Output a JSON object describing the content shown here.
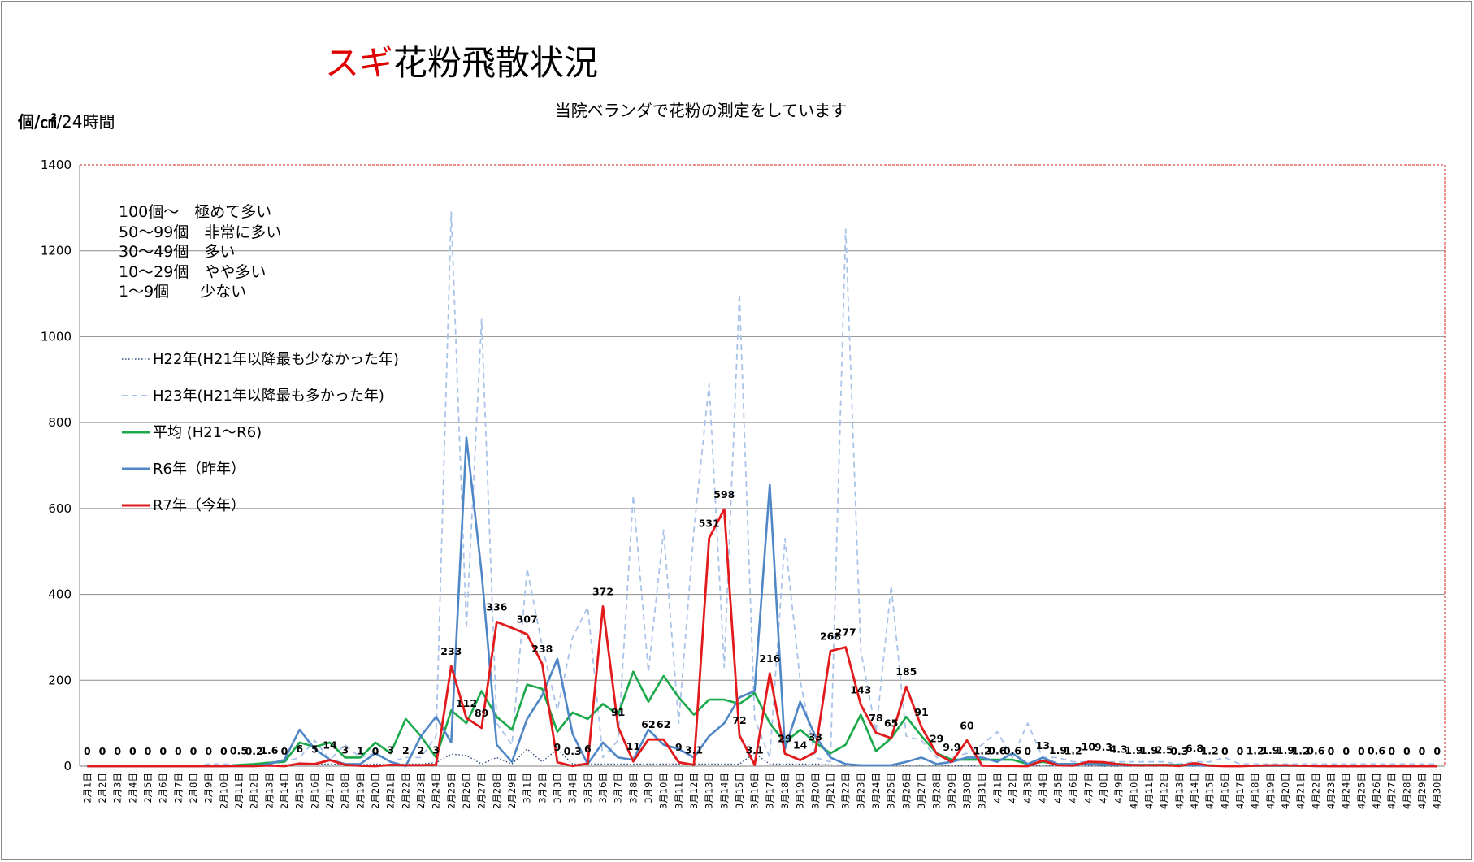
{
  "header": {
    "title_accent": "スギ",
    "title_rest": "花粉飛散状況",
    "subtitle": "当院ベランダで花粉の測定をしています",
    "unit_main": "個/㎠",
    "unit_tail": "/24時間"
  },
  "density_scale": [
    "100個～　極めて多い",
    "50～99個　非常に多い",
    "30～49個　多い",
    "10～29個　やや多い",
    "1～9個　　少ない"
  ],
  "colors": {
    "accent": "#e00000",
    "r7": "#e31a1c",
    "r6": "#4f86c6",
    "avg": "#1aa84b",
    "h23": "#a9c3e8",
    "h22": "#2b4a7a",
    "grid": "#8c8c8c",
    "plot_border": "#e31a1c"
  },
  "chart_data": {
    "type": "line",
    "ylim": [
      0,
      1400
    ],
    "yticks": [
      0,
      200,
      400,
      600,
      800,
      1000,
      1200,
      1400
    ],
    "grid": true,
    "legend_position": "left",
    "categories": [
      "2月1日",
      "2月2日",
      "2月3日",
      "2月4日",
      "2月5日",
      "2月6日",
      "2月7日",
      "2月8日",
      "2月9日",
      "2月10日",
      "2月11日",
      "2月12日",
      "2月13日",
      "2月14日",
      "2月15日",
      "2月16日",
      "2月17日",
      "2月18日",
      "2月19日",
      "2月20日",
      "2月21日",
      "2月22日",
      "2月23日",
      "2月24日",
      "2月25日",
      "2月26日",
      "2月27日",
      "2月28日",
      "2月29日",
      "3月1日",
      "3月2日",
      "3月3日",
      "3月4日",
      "3月5日",
      "3月6日",
      "3月7日",
      "3月8日",
      "3月9日",
      "3月10日",
      "3月11日",
      "3月12日",
      "3月13日",
      "3月14日",
      "3月15日",
      "3月16日",
      "3月17日",
      "3月18日",
      "3月19日",
      "3月20日",
      "3月21日",
      "3月22日",
      "3月23日",
      "3月24日",
      "3月25日",
      "3月26日",
      "3月27日",
      "3月28日",
      "3月29日",
      "3月30日",
      "3月31日",
      "4月1日",
      "4月2日",
      "4月3日",
      "4月4日",
      "4月5日",
      "4月6日",
      "4月7日",
      "4月8日",
      "4月9日",
      "4月10日",
      "4月11日",
      "4月12日",
      "4月13日",
      "4月14日",
      "4月15日",
      "4月16日",
      "4月17日",
      "4月18日",
      "4月19日",
      "4月20日",
      "4月21日",
      "4月22日",
      "4月23日",
      "4月24日",
      "4月25日",
      "4月26日",
      "4月27日",
      "4月28日",
      "4月29日",
      "4月30日"
    ],
    "series": [
      {
        "name": "H22年(H21年以降最も少なかった年)",
        "key": "h22",
        "style": "dotted",
        "values": [
          0,
          0,
          0,
          0,
          0,
          0,
          0,
          0,
          1,
          1,
          1,
          1,
          2,
          3,
          4,
          5,
          5,
          4,
          3,
          5,
          3,
          5,
          5,
          8,
          28,
          25,
          5,
          20,
          5,
          40,
          10,
          40,
          5,
          5,
          5,
          5,
          5,
          5,
          5,
          5,
          5,
          5,
          5,
          5,
          30,
          5,
          5,
          5,
          5,
          3,
          2,
          2,
          2,
          2,
          2,
          2,
          2,
          1,
          1,
          1,
          1,
          1,
          1,
          1,
          1,
          1,
          1,
          0,
          0,
          0,
          0,
          0,
          0,
          0,
          0,
          0,
          0,
          0,
          0,
          0,
          0,
          0,
          0,
          0,
          0,
          0,
          0,
          0,
          0,
          0
        ]
      },
      {
        "name": "H23年(H21年以降最も多かった年)",
        "key": "h23",
        "style": "dashed",
        "values": [
          0,
          0,
          0,
          0,
          0,
          0,
          0,
          0,
          5,
          5,
          3,
          3,
          10,
          10,
          20,
          60,
          15,
          50,
          20,
          30,
          10,
          20,
          20,
          70,
          1290,
          320,
          1040,
          100,
          50,
          460,
          280,
          130,
          300,
          370,
          20,
          60,
          630,
          220,
          550,
          100,
          550,
          890,
          230,
          1100,
          110,
          20,
          530,
          200,
          20,
          10,
          1250,
          270,
          80,
          420,
          70,
          60,
          20,
          20,
          30,
          50,
          80,
          20,
          100,
          20,
          20,
          10,
          10,
          10,
          10,
          10,
          10,
          10,
          5,
          10,
          10,
          20,
          5,
          5,
          5,
          5,
          5,
          5,
          5,
          5,
          5,
          5,
          5,
          5,
          5,
          5
        ]
      },
      {
        "name": "平均 (H21～R6)",
        "key": "avg",
        "style": "solid",
        "values": [
          0,
          0,
          0,
          0,
          0,
          0,
          0,
          0,
          0,
          0,
          3,
          5,
          8,
          10,
          55,
          45,
          55,
          20,
          20,
          55,
          30,
          110,
          70,
          20,
          130,
          100,
          175,
          115,
          85,
          190,
          180,
          80,
          125,
          110,
          145,
          120,
          220,
          150,
          210,
          160,
          120,
          155,
          155,
          145,
          170,
          100,
          55,
          85,
          55,
          30,
          50,
          120,
          35,
          65,
          115,
          70,
          30,
          15,
          15,
          15,
          15,
          15,
          5,
          10,
          5,
          5,
          5,
          5,
          5,
          3,
          3,
          3,
          3,
          2,
          2,
          1,
          1,
          1,
          1,
          1,
          1,
          1,
          1,
          0,
          0,
          0,
          0,
          0,
          0,
          0
        ]
      },
      {
        "name": "R6年（昨年）",
        "key": "r6",
        "style": "solid",
        "values": [
          0,
          0,
          0,
          0,
          0,
          0,
          0,
          0,
          0,
          0,
          0,
          0,
          5,
          15,
          85,
          40,
          15,
          5,
          5,
          30,
          10,
          0,
          70,
          115,
          55,
          765,
          450,
          50,
          10,
          110,
          165,
          250,
          75,
          5,
          55,
          20,
          15,
          85,
          50,
          40,
          20,
          70,
          100,
          160,
          175,
          655,
          40,
          150,
          70,
          20,
          5,
          2,
          2,
          2,
          10,
          20,
          5,
          10,
          20,
          20,
          10,
          30,
          5,
          20,
          5,
          5,
          5,
          3,
          3,
          3,
          2,
          2,
          2,
          2,
          1,
          1,
          1,
          1,
          1,
          1,
          1,
          0,
          0,
          0,
          0,
          0,
          0,
          0,
          0,
          0
        ]
      },
      {
        "name": "R7年（今年）",
        "key": "r7",
        "style": "solid",
        "values": [
          0,
          0,
          0,
          0,
          0,
          0,
          0,
          0,
          0,
          0,
          0.5,
          0.2,
          1.6,
          0,
          6,
          5,
          14,
          3,
          1,
          0,
          3,
          2,
          2,
          3,
          233,
          112,
          89,
          336,
          322,
          307,
          238,
          9,
          0.3,
          6,
          372,
          91,
          11,
          62,
          62,
          9,
          3.1,
          531,
          598,
          72,
          3.1,
          216,
          29,
          14,
          33,
          268,
          277,
          143,
          78,
          65,
          185,
          91,
          29,
          9.9,
          60,
          1.2,
          0.6,
          0.6,
          0,
          13,
          1.9,
          1.2,
          10,
          9.3,
          4.3,
          1.9,
          1.9,
          2.5,
          0.3,
          6.8,
          1.2,
          0,
          0,
          1.2,
          1.9,
          1.9,
          1.2,
          0.6,
          0,
          0,
          0,
          0.6,
          0,
          0,
          0,
          0
        ]
      }
    ],
    "data_labels": [
      "0",
      "0",
      "0",
      "0",
      "0",
      "0",
      "0",
      "0",
      "0",
      "0",
      "0.5",
      "0.2",
      "1.6",
      "0",
      "6",
      "5",
      "14",
      "3",
      "1",
      "0",
      "3",
      "2",
      "2",
      "3",
      "233",
      "112",
      "89",
      "336",
      "",
      "307",
      "238",
      "9",
      "0.3",
      "6",
      "372",
      "91",
      "11",
      "62",
      "62",
      "9",
      "3.1",
      "531",
      "598",
      "72",
      "3.1",
      "216",
      "29",
      "14",
      "33",
      "268",
      "277",
      "143",
      "78",
      "65",
      "185",
      "91",
      "29",
      "9.9",
      "60",
      "1.2",
      "0.6",
      "0.6",
      "0",
      "13",
      "1.9",
      "1.2",
      "10",
      "9.3",
      "4.3",
      "1.9",
      "1.9",
      "2.5",
      "0.3",
      "6.8",
      "1.2",
      "0",
      "0",
      "1.2",
      "1.9",
      "1.9",
      "1.2",
      "0.6",
      "0",
      "0",
      "0",
      "0.6",
      "0",
      "0",
      "0",
      "0"
    ]
  }
}
